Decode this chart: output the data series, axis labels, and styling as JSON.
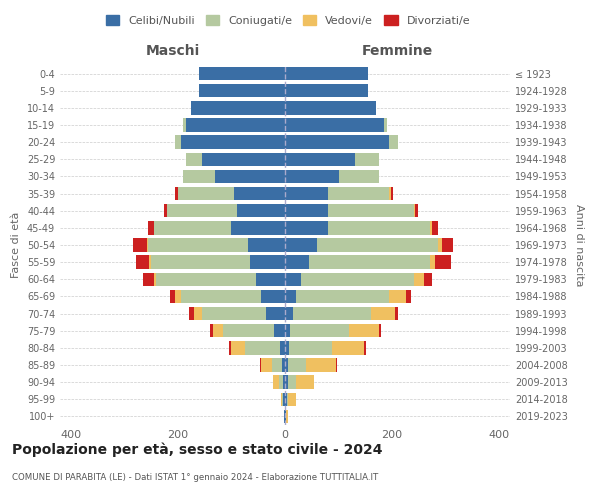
{
  "age_groups": [
    "0-4",
    "5-9",
    "10-14",
    "15-19",
    "20-24",
    "25-29",
    "30-34",
    "35-39",
    "40-44",
    "45-49",
    "50-54",
    "55-59",
    "60-64",
    "65-69",
    "70-74",
    "75-79",
    "80-84",
    "85-89",
    "90-94",
    "95-99",
    "100+"
  ],
  "birth_years": [
    "2019-2023",
    "2014-2018",
    "2009-2013",
    "2004-2008",
    "1999-2003",
    "1994-1998",
    "1989-1993",
    "1984-1988",
    "1979-1983",
    "1974-1978",
    "1969-1973",
    "1964-1968",
    "1959-1963",
    "1954-1958",
    "1949-1953",
    "1944-1948",
    "1939-1943",
    "1934-1938",
    "1929-1933",
    "1924-1928",
    "≤ 1923"
  ],
  "colors": {
    "celibi": "#3a6ea5",
    "coniugati": "#b5c9a0",
    "vedovi": "#f0c060",
    "divorziati": "#cc2020"
  },
  "maschi": {
    "celibi": [
      160,
      160,
      175,
      185,
      195,
      155,
      130,
      95,
      90,
      100,
      70,
      65,
      55,
      45,
      35,
      20,
      10,
      5,
      4,
      3,
      2
    ],
    "coniugati": [
      0,
      0,
      0,
      5,
      10,
      30,
      60,
      105,
      130,
      145,
      185,
      185,
      185,
      150,
      120,
      95,
      65,
      20,
      8,
      2,
      0
    ],
    "vedovi": [
      0,
      0,
      0,
      0,
      0,
      0,
      0,
      0,
      0,
      0,
      3,
      3,
      5,
      10,
      15,
      20,
      25,
      20,
      10,
      2,
      0
    ],
    "divorziati": [
      0,
      0,
      0,
      0,
      0,
      0,
      0,
      5,
      5,
      10,
      25,
      25,
      20,
      10,
      10,
      5,
      5,
      2,
      0,
      0,
      0
    ]
  },
  "femmine": {
    "celibi": [
      155,
      155,
      170,
      185,
      195,
      130,
      100,
      80,
      80,
      80,
      60,
      45,
      30,
      20,
      15,
      10,
      8,
      5,
      5,
      3,
      2
    ],
    "coniugati": [
      0,
      0,
      0,
      5,
      15,
      45,
      75,
      115,
      160,
      190,
      225,
      225,
      210,
      175,
      145,
      110,
      80,
      35,
      15,
      3,
      0
    ],
    "vedovi": [
      0,
      0,
      0,
      0,
      0,
      0,
      0,
      2,
      3,
      5,
      8,
      10,
      20,
      30,
      45,
      55,
      60,
      55,
      35,
      15,
      3
    ],
    "divorziati": [
      0,
      0,
      0,
      0,
      0,
      0,
      0,
      5,
      5,
      10,
      20,
      30,
      15,
      10,
      5,
      5,
      3,
      2,
      0,
      0,
      0
    ]
  },
  "title": "Popolazione per età, sesso e stato civile - 2024",
  "subtitle": "COMUNE DI PARABITA (LE) - Dati ISTAT 1° gennaio 2024 - Elaborazione TUTTITALIA.IT",
  "xlabel_left": "Maschi",
  "xlabel_right": "Femmine",
  "ylabel_left": "Fasce di età",
  "ylabel_right": "Anni di nascita",
  "xlim": 420,
  "legend_labels": [
    "Celibi/Nubili",
    "Coniugati/e",
    "Vedovi/e",
    "Divorziati/e"
  ]
}
